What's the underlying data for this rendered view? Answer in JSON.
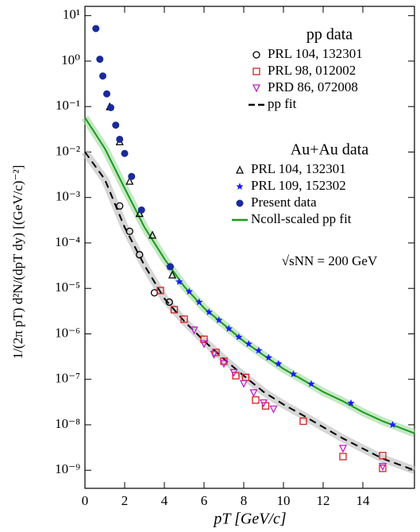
{
  "chart_data": {
    "type": "scatter",
    "x_label": "pT [GeV/c]",
    "y_label": "1/(2π pT) d²N/(dpT dy) [(GeV/c)⁻²]",
    "legend_titles": [
      "pp data",
      "Au+Au data"
    ],
    "annotation": "√sNN = 200 GeV",
    "xlim": [
      0,
      16.6
    ],
    "ylim": [
      4e-10,
      16
    ],
    "ylog": true,
    "xticks": [
      0,
      2,
      4,
      6,
      8,
      10,
      12,
      14
    ],
    "yticks": [
      {
        "value": 10,
        "label": "10¹"
      },
      {
        "value": 1,
        "label": "10⁰"
      },
      {
        "value": 0.1,
        "label": "10⁻¹"
      },
      {
        "value": 0.01,
        "label": "10⁻²"
      },
      {
        "value": 0.001,
        "label": "10⁻³"
      },
      {
        "value": 0.0001,
        "label": "10⁻⁴"
      },
      {
        "value": 1e-05,
        "label": "10⁻⁵"
      },
      {
        "value": 1e-06,
        "label": "10⁻⁶"
      },
      {
        "value": 1e-07,
        "label": "10⁻⁷"
      },
      {
        "value": 1e-08,
        "label": "10⁻⁸"
      },
      {
        "value": 1e-09,
        "label": "10⁻⁹"
      }
    ],
    "series": [
      {
        "name": "PRL 104, 132301",
        "marker": "circle-open",
        "color": "#000000",
        "x": [
          1.75,
          2.25,
          2.75,
          3.5,
          4.25
        ],
        "values": [
          0.00065,
          0.00018,
          5.5e-05,
          8e-06,
          5e-06
        ]
      },
      {
        "name": "PRL 98, 012002",
        "marker": "square-open",
        "color": "#d42020",
        "x": [
          3.8,
          4.5,
          5.0,
          6.0,
          6.6,
          7.0,
          7.6,
          8.1,
          8.6,
          9.1,
          11.0,
          13.0,
          15.0,
          15.0
        ],
        "values": [
          9e-06,
          3.4e-06,
          2.1e-06,
          7.6e-07,
          3.9e-07,
          2.5e-07,
          1.2e-07,
          1.1e-07,
          3.5e-08,
          2.6e-08,
          1.2e-08,
          2e-09,
          2.1e-09,
          1.1e-09
        ]
      },
      {
        "name": "PRD 86, 072008",
        "marker": "triangle-down-open",
        "color": "#c020c0",
        "x": [
          5.5,
          6.0,
          6.5,
          7.0,
          7.5,
          8.0,
          8.5,
          9.0,
          9.5,
          13.0,
          15.0
        ],
        "values": [
          1.2e-06,
          6e-07,
          3.5e-07,
          2.2e-07,
          1.4e-07,
          8e-08,
          5e-08,
          3e-08,
          2.2e-08,
          3e-09,
          1.2e-09
        ]
      },
      {
        "name": "pp fit",
        "marker": "line-dashed",
        "color": "#000000",
        "x": [
          0,
          1,
          2,
          3,
          4,
          5,
          6,
          7,
          8,
          9,
          10,
          11,
          12,
          13,
          14,
          15,
          16.6
        ],
        "values": [
          0.01,
          0.0025,
          0.00022,
          3.2e-05,
          6e-06,
          1.9e-06,
          7e-07,
          2.8e-07,
          1.2e-07,
          5.3e-08,
          2.8e-08,
          1.6e-08,
          8.9e-09,
          5e-09,
          3e-09,
          1.8e-09,
          1e-09
        ]
      },
      {
        "name": "PRL 104, 132301",
        "marker": "triangle-up-open",
        "color": "#000000",
        "x": [
          1.25,
          1.75,
          2.25,
          2.75,
          3.4,
          4.4
        ],
        "values": [
          0.1,
          0.017,
          0.0023,
          0.00045,
          0.00015,
          2e-05
        ]
      },
      {
        "name": "PRL 109, 152302",
        "marker": "star",
        "color": "#1a1aff",
        "x": [
          4.25,
          4.75,
          5.25,
          5.75,
          6.25,
          6.75,
          7.25,
          7.75,
          8.25,
          8.75,
          9.25,
          9.75,
          10.5,
          11.4,
          13.4,
          15.5
        ],
        "values": [
          3e-05,
          1.4e-05,
          8.5e-06,
          5e-06,
          3e-06,
          2e-06,
          1.3e-06,
          8.5e-07,
          6e-07,
          4.3e-07,
          3e-07,
          2.2e-07,
          1.3e-07,
          7.9e-08,
          3e-08,
          1e-08
        ]
      },
      {
        "name": "Present data",
        "marker": "circle-filled",
        "color": "#1a2a9a",
        "x": [
          0.55,
          0.75,
          0.9,
          1.1,
          1.3,
          1.55,
          1.75,
          2.0,
          2.35,
          2.85,
          4.3
        ],
        "values": [
          5.2,
          1.1,
          0.47,
          0.19,
          0.095,
          0.039,
          0.019,
          0.0093,
          0.0029,
          0.00053,
          3e-05
        ]
      },
      {
        "name": "Ncoll-scaled pp fit",
        "marker": "line",
        "color": "#1a9a1a",
        "x": [
          0,
          1,
          2,
          3,
          4,
          5,
          6,
          7,
          8,
          9,
          10,
          11,
          12,
          13,
          14,
          15,
          16.6
        ],
        "values": [
          0.057,
          0.012,
          0.0016,
          0.00022,
          4.5e-05,
          1.1e-05,
          3.7e-06,
          1.6e-06,
          6.9e-07,
          3.4e-07,
          1.7e-07,
          9.6e-08,
          5.3e-08,
          3.3e-08,
          1.9e-08,
          1.2e-08,
          6.5e-09
        ]
      }
    ]
  }
}
